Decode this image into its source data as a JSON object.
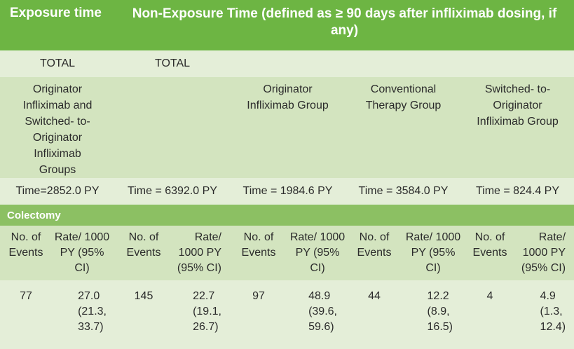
{
  "header": {
    "exposure_time": "Exposure time",
    "non_exposure_time": "Non-Exposure Time (defined as ≥ 90 days after infliximab dosing, if any)"
  },
  "totals": {
    "exposure": "TOTAL",
    "non_exposure": "TOTAL"
  },
  "groups": {
    "exposure": "Originator Infliximab and Switched- to- Originator Infliximab Groups",
    "total_non_exposure": "",
    "originator": "Originator Infliximab Group",
    "conventional": "Conventional Therapy Group",
    "switched": "Switched- to- Originator Infliximab Group"
  },
  "times": {
    "exposure": "Time=2852.0 PY",
    "total_non_exposure": "Time = 6392.0 PY",
    "originator": "Time = 1984.6 PY",
    "conventional": "Time = 3584.0 PY",
    "switched": "Time = 824.4 PY"
  },
  "section": {
    "label": "Colectomy"
  },
  "column_headers": [
    {
      "events": "No. of Events",
      "rate": "Rate/ 1000 PY (95% CI)"
    },
    {
      "events": "No. of Events",
      "rate": "Rate/ 1000 PY (95% CI)"
    },
    {
      "events": "No. of Events",
      "rate": "Rate/ 1000 PY (95% CI)"
    },
    {
      "events": "No. of Events",
      "rate": "Rate/ 1000 PY (95% CI)"
    },
    {
      "events": "No. of Events",
      "rate": "Rate/ 1000 PY (95% CI)"
    }
  ],
  "values": [
    {
      "events": "77",
      "rate": "27.0",
      "ci_low": "(21.3,",
      "ci_high": "33.7)"
    },
    {
      "events": "145",
      "rate": "22.7",
      "ci_low": "(19.1,",
      "ci_high": "26.7)"
    },
    {
      "events": "97",
      "rate": "48.9",
      "ci_low": "(39.6,",
      "ci_high": "59.6)"
    },
    {
      "events": "44",
      "rate": "12.2",
      "ci_low": "(8.9,",
      "ci_high": "16.5)"
    },
    {
      "events": "4",
      "rate": "4.9",
      "ci_low": "(1.3,",
      "ci_high": "12.4)"
    }
  ]
}
